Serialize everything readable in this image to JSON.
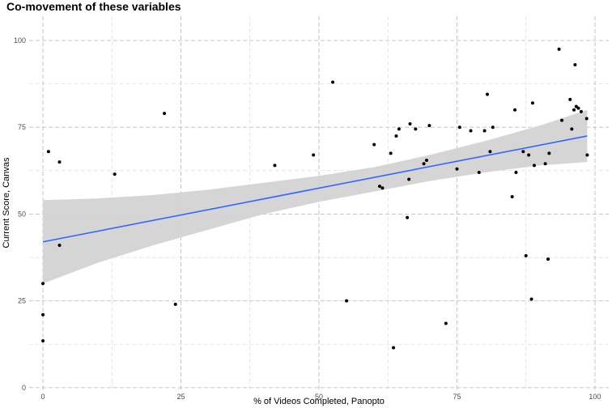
{
  "chart_data": {
    "type": "scatter",
    "title": "Co-movement of these variables",
    "xlabel": "% of Videos Completed, Panopto",
    "ylabel": "Current Score, Canvas",
    "xlim": [
      -2.5,
      102.5
    ],
    "ylim": [
      -0.5,
      107
    ],
    "x_ticks": [
      0,
      25,
      50,
      75,
      100
    ],
    "y_ticks": [
      0,
      25,
      50,
      75,
      100
    ],
    "x_minor": [
      12.5,
      37.5,
      62.5,
      87.5
    ],
    "y_minor": [
      12.5,
      37.5,
      62.5,
      87.5
    ],
    "grid": true,
    "colors": {
      "points": "#000000",
      "fit_line": "#3366ff",
      "confidence_band": "#d3d3d3",
      "grid": "#bdbdbd"
    },
    "points": [
      {
        "x": 0,
        "y": 13.5
      },
      {
        "x": 0,
        "y": 21
      },
      {
        "x": 0,
        "y": 30
      },
      {
        "x": 1,
        "y": 68
      },
      {
        "x": 3,
        "y": 41
      },
      {
        "x": 3,
        "y": 65
      },
      {
        "x": 13,
        "y": 61.5
      },
      {
        "x": 22,
        "y": 79
      },
      {
        "x": 24,
        "y": 24
      },
      {
        "x": 42,
        "y": 64
      },
      {
        "x": 49,
        "y": 67
      },
      {
        "x": 52.5,
        "y": 88
      },
      {
        "x": 55,
        "y": 25
      },
      {
        "x": 60,
        "y": 70
      },
      {
        "x": 61,
        "y": 58
      },
      {
        "x": 61.5,
        "y": 57.5
      },
      {
        "x": 63,
        "y": 67.5
      },
      {
        "x": 63.5,
        "y": 11.5
      },
      {
        "x": 64,
        "y": 72.5
      },
      {
        "x": 64.5,
        "y": 74.5
      },
      {
        "x": 66,
        "y": 49
      },
      {
        "x": 66.3,
        "y": 60
      },
      {
        "x": 66.5,
        "y": 76
      },
      {
        "x": 67.5,
        "y": 74.5
      },
      {
        "x": 69,
        "y": 64.5
      },
      {
        "x": 69.5,
        "y": 65.5
      },
      {
        "x": 70,
        "y": 75.5
      },
      {
        "x": 73,
        "y": 18.5
      },
      {
        "x": 75,
        "y": 63
      },
      {
        "x": 75.5,
        "y": 75
      },
      {
        "x": 77.5,
        "y": 74
      },
      {
        "x": 79,
        "y": 62
      },
      {
        "x": 80,
        "y": 74
      },
      {
        "x": 80.5,
        "y": 84.5
      },
      {
        "x": 81,
        "y": 68
      },
      {
        "x": 81.5,
        "y": 75
      },
      {
        "x": 85,
        "y": 55
      },
      {
        "x": 85.5,
        "y": 80
      },
      {
        "x": 85.7,
        "y": 62
      },
      {
        "x": 87,
        "y": 68
      },
      {
        "x": 87.5,
        "y": 38
      },
      {
        "x": 88,
        "y": 67
      },
      {
        "x": 88.5,
        "y": 25.5
      },
      {
        "x": 88.7,
        "y": 82
      },
      {
        "x": 89,
        "y": 64
      },
      {
        "x": 91,
        "y": 64.5
      },
      {
        "x": 91.5,
        "y": 37
      },
      {
        "x": 91.7,
        "y": 67.5
      },
      {
        "x": 93.5,
        "y": 97.5
      },
      {
        "x": 94,
        "y": 77
      },
      {
        "x": 95.5,
        "y": 83
      },
      {
        "x": 95.8,
        "y": 74.5
      },
      {
        "x": 96.2,
        "y": 80
      },
      {
        "x": 96.4,
        "y": 93
      },
      {
        "x": 96.6,
        "y": 81
      },
      {
        "x": 97,
        "y": 80.5
      },
      {
        "x": 97.5,
        "y": 79.5
      },
      {
        "x": 98.5,
        "y": 77.5
      },
      {
        "x": 98.6,
        "y": 67
      }
    ],
    "fit": {
      "method": "linear",
      "line": [
        {
          "x": 0,
          "y": 42
        },
        {
          "x": 98.6,
          "y": 72.5
        }
      ],
      "band_upper": [
        {
          "x": 0,
          "y": 54
        },
        {
          "x": 10,
          "y": 54.5
        },
        {
          "x": 20,
          "y": 55.5
        },
        {
          "x": 30,
          "y": 57
        },
        {
          "x": 40,
          "y": 59
        },
        {
          "x": 50,
          "y": 61
        },
        {
          "x": 60,
          "y": 63.5
        },
        {
          "x": 70,
          "y": 67
        },
        {
          "x": 80,
          "y": 71
        },
        {
          "x": 90,
          "y": 75.5
        },
        {
          "x": 98.6,
          "y": 80
        }
      ],
      "band_lower": [
        {
          "x": 0,
          "y": 30
        },
        {
          "x": 10,
          "y": 36
        },
        {
          "x": 20,
          "y": 41
        },
        {
          "x": 30,
          "y": 45.5
        },
        {
          "x": 40,
          "y": 50
        },
        {
          "x": 50,
          "y": 53.5
        },
        {
          "x": 60,
          "y": 56.5
        },
        {
          "x": 70,
          "y": 59.5
        },
        {
          "x": 80,
          "y": 62
        },
        {
          "x": 90,
          "y": 64
        },
        {
          "x": 98.6,
          "y": 65
        }
      ]
    }
  }
}
